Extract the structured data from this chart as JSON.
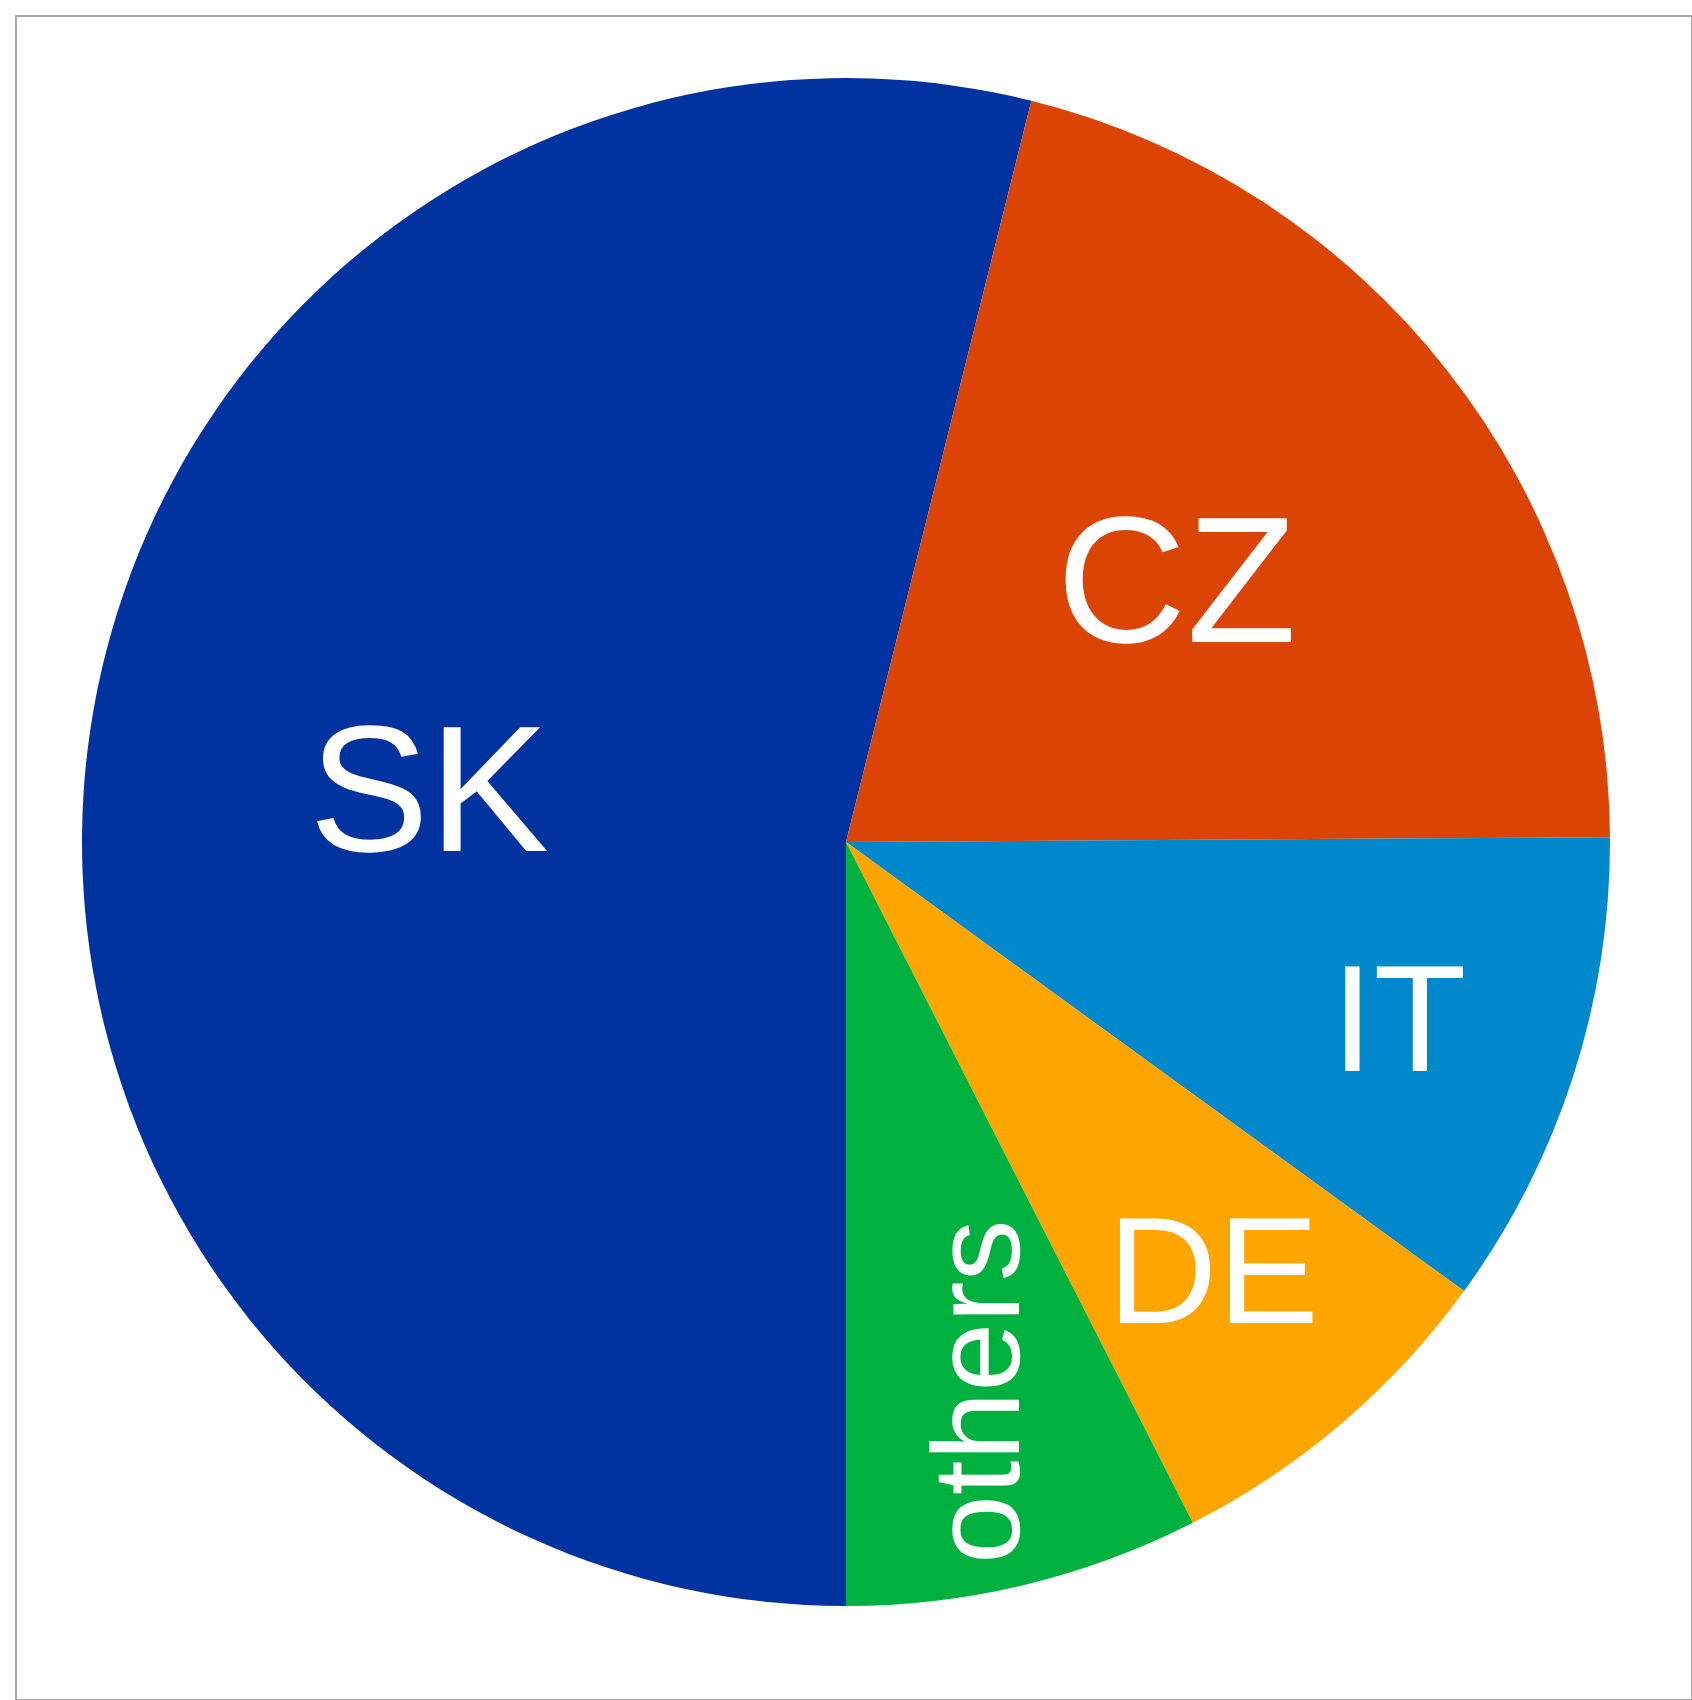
{
  "chart_data": {
    "type": "pie",
    "categories": [
      "SK",
      "CZ",
      "IT",
      "DE",
      "others"
    ],
    "values": [
      53.9,
      21.0,
      10.1,
      7.5,
      7.5
    ],
    "colors": [
      "#0033a0",
      "#db4405",
      "#0088cc",
      "#ffa500",
      "#00b140"
    ]
  }
}
